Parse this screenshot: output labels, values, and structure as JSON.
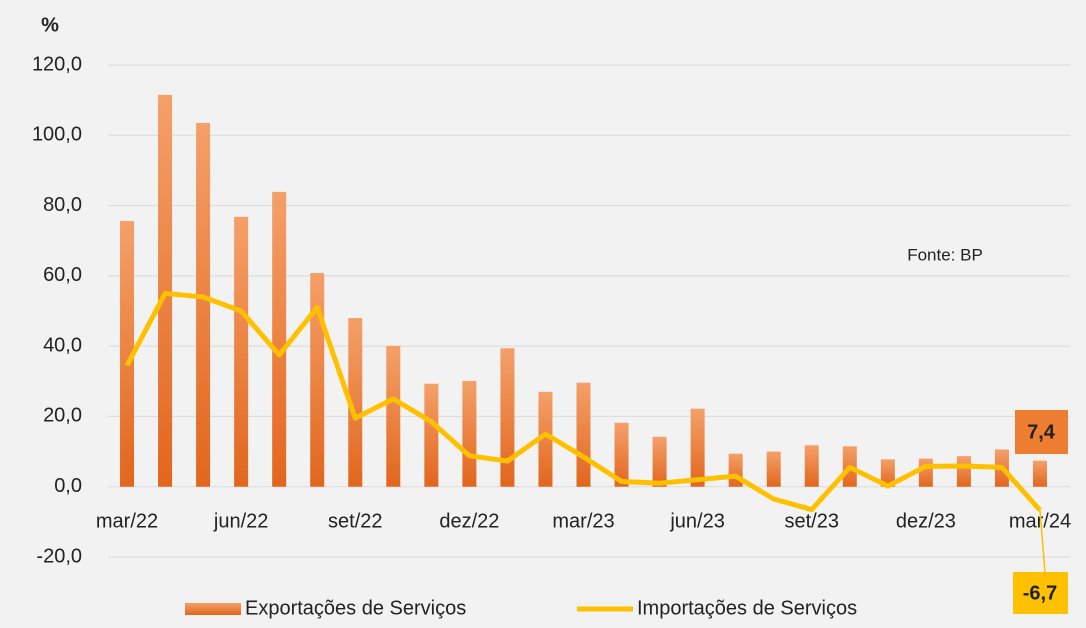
{
  "chart_data": {
    "type": "bar-line",
    "title": "%",
    "annotation": "Fonte: BP",
    "categories": [
      "mar/22",
      null,
      null,
      "jun/22",
      null,
      null,
      "set/22",
      null,
      null,
      "dez/22",
      null,
      null,
      "mar/23",
      null,
      null,
      "jun/23",
      null,
      null,
      "set/23",
      null,
      null,
      "dez/23",
      null,
      null,
      "mar/24"
    ],
    "series": [
      {
        "name": "Exportações de Serviços",
        "type": "bar",
        "color": "#ed7d31",
        "values": [
          75.6,
          111.5,
          103.5,
          76.8,
          83.9,
          60.8,
          48.0,
          40.1,
          29.3,
          30.1,
          39.4,
          27.0,
          29.6,
          18.2,
          14.2,
          22.2,
          9.4,
          10.0,
          11.8,
          11.5,
          7.8,
          8.0,
          8.7,
          10.6,
          7.4
        ],
        "value_labels": [
          null,
          null,
          null,
          null,
          null,
          null,
          null,
          null,
          null,
          null,
          null,
          null,
          null,
          null,
          null,
          null,
          null,
          null,
          null,
          null,
          null,
          null,
          null,
          null,
          "7,4"
        ]
      },
      {
        "name": "Importações de Serviços",
        "type": "line",
        "color": "#ffc000",
        "values": [
          34.5,
          55.0,
          54.0,
          50.0,
          37.5,
          51.0,
          19.5,
          25.0,
          18.5,
          8.8,
          7.3,
          15.0,
          8.5,
          1.5,
          1.0,
          2.0,
          3.0,
          -3.5,
          -6.5,
          5.5,
          0.2,
          5.8,
          5.9,
          5.5,
          -6.7
        ],
        "value_labels": [
          null,
          null,
          null,
          null,
          null,
          null,
          null,
          null,
          null,
          null,
          null,
          null,
          null,
          null,
          null,
          null,
          null,
          null,
          null,
          null,
          null,
          null,
          null,
          null,
          "-6,7"
        ]
      }
    ],
    "ylim": [
      -20,
      120
    ],
    "yticks": [
      {
        "value": -20,
        "label": "-20,0"
      },
      {
        "value": 0,
        "label": "0,0"
      },
      {
        "value": 20,
        "label": "20,0"
      },
      {
        "value": 40,
        "label": "40,0"
      },
      {
        "value": 60,
        "label": "60,0"
      },
      {
        "value": 80,
        "label": "80,0"
      },
      {
        "value": 100,
        "label": "100,0"
      },
      {
        "value": 120,
        "label": "120,0"
      }
    ],
    "grid": true
  }
}
